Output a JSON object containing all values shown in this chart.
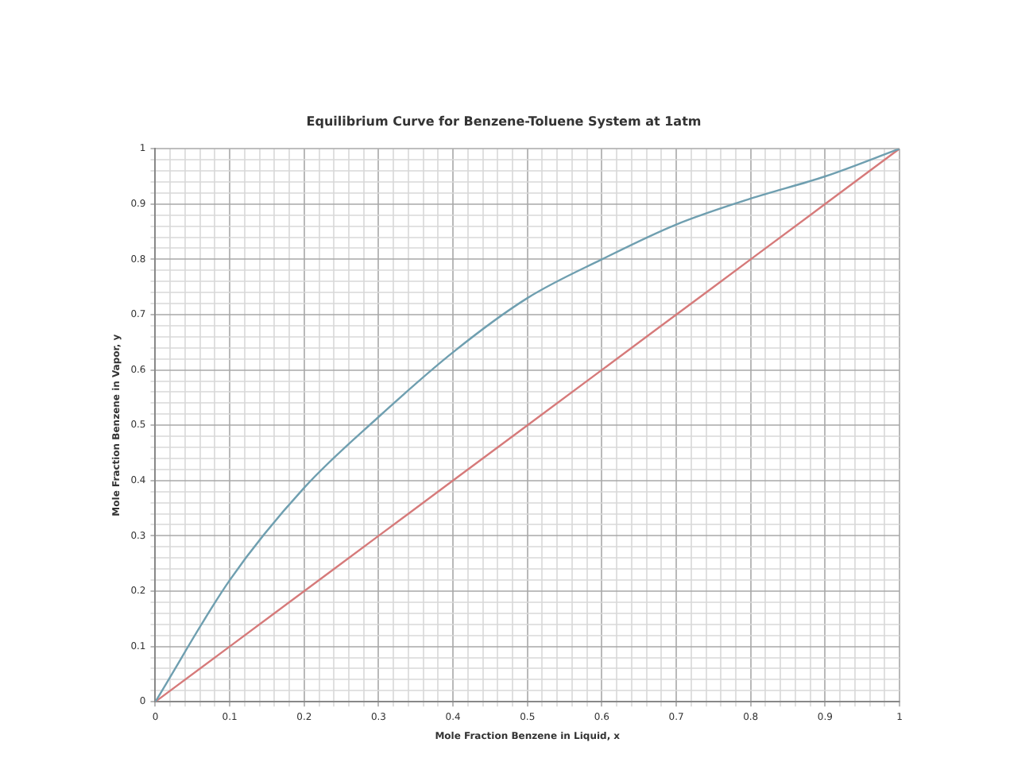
{
  "chart_data": {
    "type": "line",
    "title": "Equilibrium Curve for Benzene-Toluene System at 1atm",
    "xlabel": "Mole Fraction Benzene in Liquid, x",
    "ylabel": "Mole Fraction Benzene in Vapor, y",
    "x": [
      0,
      0.1,
      0.2,
      0.3,
      0.4,
      0.5,
      0.6,
      0.7,
      0.8,
      0.9,
      1
    ],
    "series": [
      {
        "color": "#6f9fb0",
        "values": [
          0,
          0.22,
          0.387,
          0.515,
          0.632,
          0.73,
          0.8,
          0.863,
          0.91,
          0.95,
          1
        ]
      },
      {
        "color": "#d67a7a",
        "values": [
          0,
          0.1,
          0.2,
          0.3,
          0.4,
          0.5,
          0.6,
          0.7,
          0.8,
          0.9,
          1
        ]
      }
    ],
    "xlim": [
      0,
      1
    ],
    "ylim": [
      0,
      1
    ],
    "xticks": [
      0,
      {
        "value": 0.02,
        "label": null
      },
      {
        "value": 0.04,
        "label": null
      },
      {
        "value": 0.06,
        "label": null
      },
      {
        "value": 0.08,
        "label": null
      },
      0.1,
      {
        "value": 0.12,
        "label": null
      },
      {
        "value": 0.14,
        "label": null
      },
      {
        "value": 0.16,
        "label": null
      },
      {
        "value": 0.18,
        "label": null
      },
      0.2,
      {
        "value": 0.22,
        "label": null
      },
      {
        "value": 0.24,
        "label": null
      },
      {
        "value": 0.26,
        "label": null
      },
      {
        "value": 0.28,
        "label": null
      },
      0.3,
      {
        "value": 0.32,
        "label": null
      },
      {
        "value": 0.34,
        "label": null
      },
      {
        "value": 0.36,
        "label": null
      },
      {
        "value": 0.38,
        "label": null
      },
      0.4,
      {
        "value": 0.42,
        "label": null
      },
      {
        "value": 0.44,
        "label": null
      },
      {
        "value": 0.46,
        "label": null
      },
      {
        "value": 0.48,
        "label": null
      },
      0.5,
      {
        "value": 0.52,
        "label": null
      },
      {
        "value": 0.54,
        "label": null
      },
      {
        "value": 0.56,
        "label": null
      },
      {
        "value": 0.58,
        "label": null
      },
      0.6,
      {
        "value": 0.62,
        "label": null
      },
      {
        "value": 0.64,
        "label": null
      },
      {
        "value": 0.66,
        "label": null
      },
      {
        "value": 0.68,
        "label": null
      },
      0.7,
      {
        "value": 0.72,
        "label": null
      },
      {
        "value": 0.74,
        "label": null
      },
      {
        "value": 0.76,
        "label": null
      },
      {
        "value": 0.78,
        "label": null
      },
      0.8,
      {
        "value": 0.82,
        "label": null
      },
      {
        "value": 0.84,
        "label": null
      },
      {
        "value": 0.86,
        "label": null
      },
      {
        "value": 0.88,
        "label": null
      },
      0.9,
      {
        "value": 0.92,
        "label": null
      },
      {
        "value": 0.94,
        "label": null
      },
      {
        "value": 0.96,
        "label": null
      },
      {
        "value": 0.98,
        "label": null
      },
      1
    ],
    "yticks": [
      0,
      {
        "value": 0.02,
        "label": null
      },
      {
        "value": 0.04,
        "label": null
      },
      {
        "value": 0.06,
        "label": null
      },
      {
        "value": 0.08,
        "label": null
      },
      0.1,
      {
        "value": 0.12,
        "label": null
      },
      {
        "value": 0.14,
        "label": null
      },
      {
        "value": 0.16,
        "label": null
      },
      {
        "value": 0.18,
        "label": null
      },
      0.2,
      {
        "value": 0.22,
        "label": null
      },
      {
        "value": 0.24,
        "label": null
      },
      {
        "value": 0.26,
        "label": null
      },
      {
        "value": 0.28,
        "label": null
      },
      0.3,
      {
        "value": 0.32,
        "label": null
      },
      {
        "value": 0.34,
        "label": null
      },
      {
        "value": 0.36,
        "label": null
      },
      {
        "value": 0.38,
        "label": null
      },
      0.4,
      {
        "value": 0.42,
        "label": null
      },
      {
        "value": 0.44,
        "label": null
      },
      {
        "value": 0.46,
        "label": null
      },
      {
        "value": 0.48,
        "label": null
      },
      0.5,
      {
        "value": 0.52,
        "label": null
      },
      {
        "value": 0.54,
        "label": null
      },
      {
        "value": 0.56,
        "label": null
      },
      {
        "value": 0.58,
        "label": null
      },
      0.6,
      {
        "value": 0.62,
        "label": null
      },
      {
        "value": 0.64,
        "label": null
      },
      {
        "value": 0.66,
        "label": null
      },
      {
        "value": 0.68,
        "label": null
      },
      0.7,
      {
        "value": 0.72,
        "label": null
      },
      {
        "value": 0.74,
        "label": null
      },
      {
        "value": 0.76,
        "label": null
      },
      {
        "value": 0.78,
        "label": null
      },
      0.8,
      {
        "value": 0.82,
        "label": null
      },
      {
        "value": 0.84,
        "label": null
      },
      {
        "value": 0.86,
        "label": null
      },
      {
        "value": 0.88,
        "label": null
      },
      0.9,
      {
        "value": 0.92,
        "label": null
      },
      {
        "value": 0.94,
        "label": null
      },
      {
        "value": 0.96,
        "label": null
      },
      {
        "value": 0.98,
        "label": null
      },
      1
    ],
    "grid": true,
    "legend": false,
    "marker": "none",
    "line_style": "solid"
  }
}
